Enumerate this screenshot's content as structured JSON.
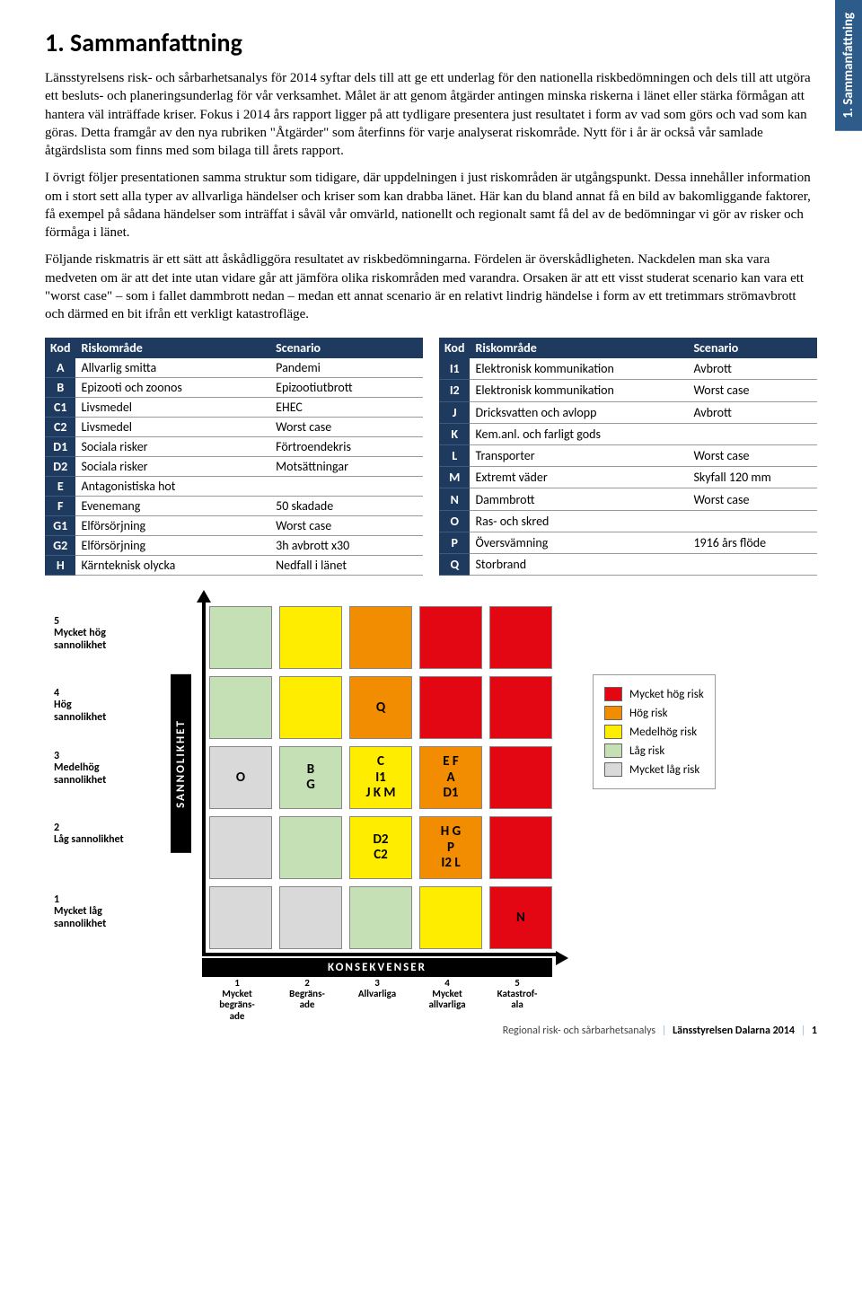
{
  "sideTab": "1. Sammanfattning",
  "title": "1. Sammanfattning",
  "paragraphs": [
    "Länsstyrelsens risk- och sårbarhetsanalys för 2014 syftar dels till att ge ett underlag för den nationella riskbedömningen och dels till att utgöra ett besluts- och planeringsunderlag för vår verksamhet. Målet är att genom åtgärder antingen minska riskerna i länet eller stärka förmågan att hantera väl inträffade kriser. Fokus i 2014 års rapport ligger på att tydligare presentera just resultatet i form av vad som görs och vad som kan göras. Detta framgår av den nya rubriken \"Åtgärder\" som återfinns för varje analyserat riskområde. Nytt för i år är också vår samlade åtgärdslista som finns med som bilaga till årets rapport.",
    "I övrigt följer presentationen samma struktur som tidigare, där uppdelningen i just riskområden är utgångspunkt. Dessa innehåller information om i stort sett alla typer av allvarliga händelser och kriser som kan drabba länet. Här kan du bland annat få en bild av bakomliggande faktorer, få exempel på sådana händelser som inträffat i såväl vår omvärld, nationellt och regionalt samt få del av de bedömningar vi gör av risker och förmåga i länet.",
    "Följande riskmatris är ett sätt att åskådliggöra resultatet av riskbedömningarna. Fördelen är överskådligheten. Nackdelen man ska vara medveten om är att det inte utan vidare går att jämföra olika riskområden med varandra. Orsaken är att ett visst studerat scenario kan vara ett \"worst case\" – som i fallet dammbrott nedan – medan ett annat scenario är en relativt lindrig händelse i form av ett tretimmars strömavbrott och därmed en bit ifrån ett verkligt katastrofläge."
  ],
  "tableHeaders": {
    "kod": "Kod",
    "risk": "Riskområde",
    "scenario": "Scenario"
  },
  "tableLeft": [
    {
      "kod": "A",
      "risk": "Allvarlig smitta",
      "scenario": "Pandemi"
    },
    {
      "kod": "B",
      "risk": "Epizooti och zoonos",
      "scenario": "Epizootiutbrott"
    },
    {
      "kod": "C1",
      "risk": "Livsmedel",
      "scenario": "EHEC"
    },
    {
      "kod": "C2",
      "risk": "Livsmedel",
      "scenario": "Worst case"
    },
    {
      "kod": "D1",
      "risk": "Sociala risker",
      "scenario": "Förtroendekris"
    },
    {
      "kod": "D2",
      "risk": "Sociala risker",
      "scenario": "Motsättningar"
    },
    {
      "kod": "E",
      "risk": "Antagonistiska hot",
      "scenario": ""
    },
    {
      "kod": "F",
      "risk": "Evenemang",
      "scenario": "50 skadade"
    },
    {
      "kod": "G1",
      "risk": "Elförsörjning",
      "scenario": "Worst case"
    },
    {
      "kod": "G2",
      "risk": "Elförsörjning",
      "scenario": "3h avbrott x30"
    },
    {
      "kod": "H",
      "risk": "Kärnteknisk olycka",
      "scenario": "Nedfall i länet"
    }
  ],
  "tableRight": [
    {
      "kod": "I1",
      "risk": "Elektronisk kommunikation",
      "scenario": "Avbrott"
    },
    {
      "kod": "I2",
      "risk": "Elektronisk kommunikation",
      "scenario": "Worst case"
    },
    {
      "kod": "J",
      "risk": "Dricksvatten och avlopp",
      "scenario": "Avbrott"
    },
    {
      "kod": "K",
      "risk": "Kem.anl. och farligt gods",
      "scenario": ""
    },
    {
      "kod": "L",
      "risk": "Transporter",
      "scenario": "Worst case"
    },
    {
      "kod": "M",
      "risk": "Extremt väder",
      "scenario": "Skyfall 120 mm"
    },
    {
      "kod": "N",
      "risk": "Dammbrott",
      "scenario": "Worst case"
    },
    {
      "kod": "O",
      "risk": "Ras- och skred",
      "scenario": ""
    },
    {
      "kod": "P",
      "risk": "Översvämning",
      "scenario": "1916 års flöde"
    },
    {
      "kod": "Q",
      "risk": "Storbrand",
      "scenario": ""
    }
  ],
  "matrix": {
    "colors": {
      "veryhigh": "#e30613",
      "high": "#f28c00",
      "medhigh": "#ffed00",
      "low": "#c5e0b4",
      "verylow": "#d9d9d9"
    },
    "rows": [
      [
        {
          "color": "low",
          "label": ""
        },
        {
          "color": "medhigh",
          "label": ""
        },
        {
          "color": "high",
          "label": ""
        },
        {
          "color": "veryhigh",
          "label": ""
        },
        {
          "color": "veryhigh",
          "label": ""
        }
      ],
      [
        {
          "color": "low",
          "label": ""
        },
        {
          "color": "medhigh",
          "label": ""
        },
        {
          "color": "high",
          "label": "Q"
        },
        {
          "color": "veryhigh",
          "label": ""
        },
        {
          "color": "veryhigh",
          "label": ""
        }
      ],
      [
        {
          "color": "verylow",
          "label": "O"
        },
        {
          "color": "low",
          "label": "B\nG"
        },
        {
          "color": "medhigh",
          "label": "C\nI1\nJ  K M"
        },
        {
          "color": "high",
          "label": "E   F\nA\nD1"
        },
        {
          "color": "veryhigh",
          "label": ""
        }
      ],
      [
        {
          "color": "verylow",
          "label": ""
        },
        {
          "color": "low",
          "label": ""
        },
        {
          "color": "medhigh",
          "label": "D2\nC2"
        },
        {
          "color": "high",
          "label": "H   G\nP\nI2   L"
        },
        {
          "color": "veryhigh",
          "label": ""
        }
      ],
      [
        {
          "color": "verylow",
          "label": ""
        },
        {
          "color": "verylow",
          "label": ""
        },
        {
          "color": "low",
          "label": ""
        },
        {
          "color": "medhigh",
          "label": ""
        },
        {
          "color": "veryhigh",
          "label": "N"
        }
      ]
    ],
    "yAxis": {
      "title": "SANNOLIKHET",
      "labels": [
        "5\nMycket hög\nsannolikhet",
        "4\nHög\nsannolikhet",
        "3\nMedelhög\nsannolikhet",
        "2\nLåg sannolikhet",
        "1\nMycket låg\nsannolikhet"
      ]
    },
    "xAxis": {
      "title": "KONSEKVENSER",
      "labels": [
        "1\nMycket\nbegräns-\nade",
        "2\nBegräns-\nade",
        "3\nAllvarliga",
        "4\nMycket\nallvarliga",
        "5\nKatastrof-\nala"
      ]
    },
    "legend": [
      {
        "color": "veryhigh",
        "label": "Mycket hög risk"
      },
      {
        "color": "high",
        "label": "Hög risk"
      },
      {
        "color": "medhigh",
        "label": "Medelhög risk"
      },
      {
        "color": "low",
        "label": "Låg risk"
      },
      {
        "color": "verylow",
        "label": "Mycket låg risk"
      }
    ]
  },
  "footer": {
    "left": "Regional risk- och sårbarhetsanalys",
    "right": "Länsstyrelsen Dalarna 2014",
    "page": "1"
  }
}
